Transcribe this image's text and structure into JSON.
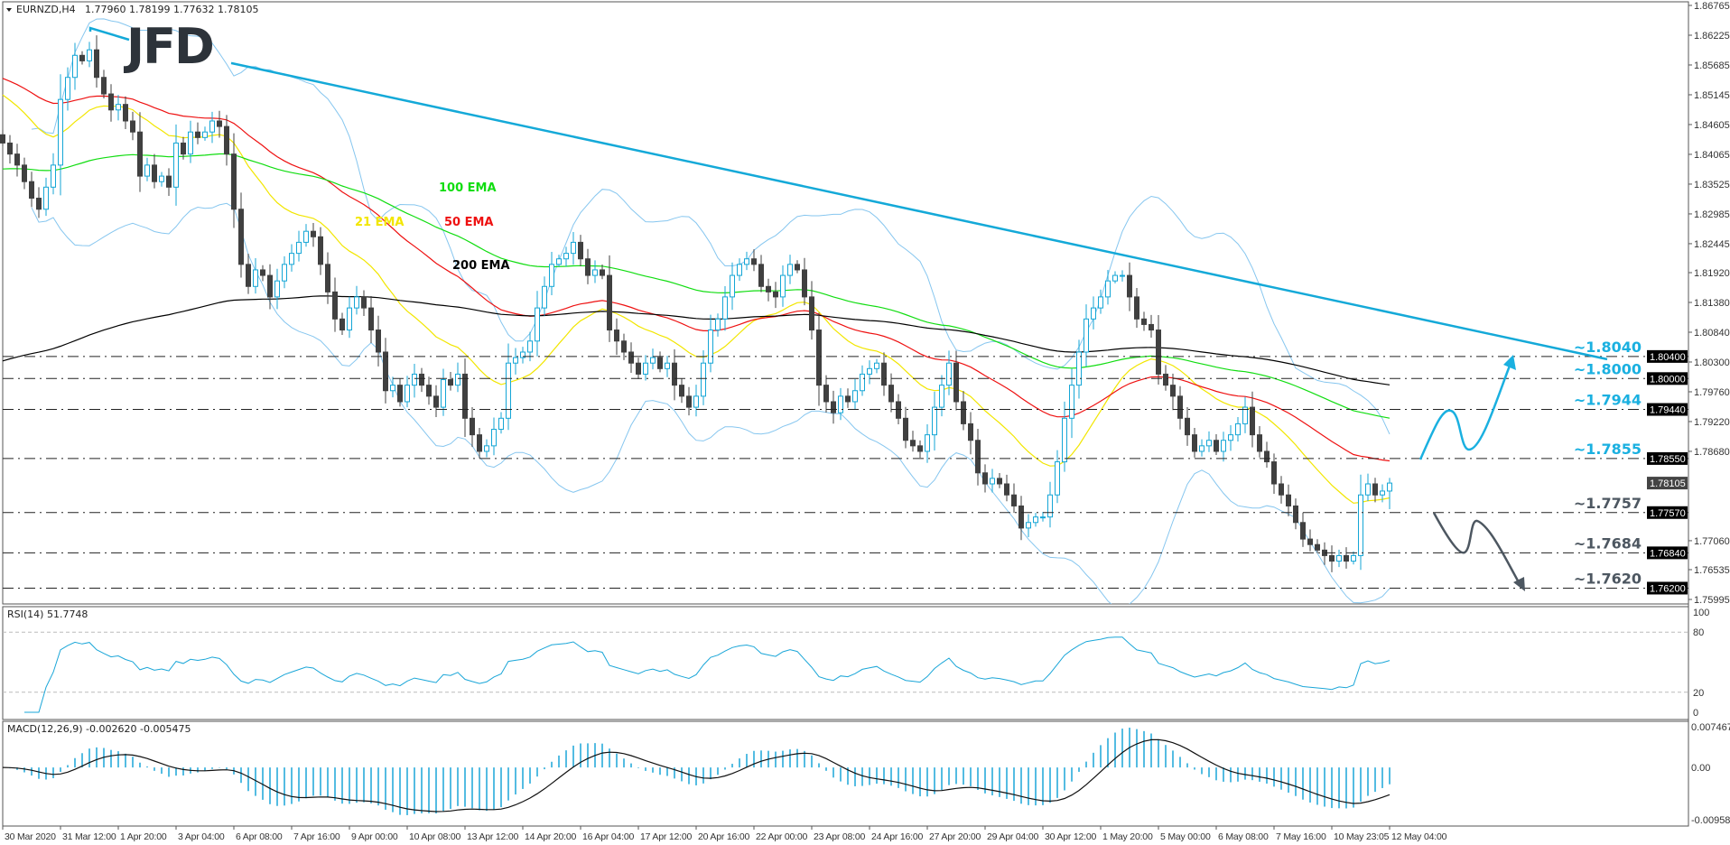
{
  "header": {
    "symbol": "EURNZD,H4",
    "ohlc": "1.77960 1.78199 1.77632 1.78105"
  },
  "logo": "JFD",
  "colors": {
    "bull": "#14a6d6",
    "bear": "#404040",
    "trendline": "#14a9d8",
    "bollinger": "#86c6ef",
    "level_line": "#222222",
    "level_up": "#1ab0e0",
    "level_down": "#4d5761",
    "rsi": "#1aa6d8",
    "macd_hist": "#1aa6d8",
    "macd_signal": "#111111",
    "axis_box": "#000000",
    "current_box": "#444444"
  },
  "chart_data": [
    {
      "type": "candlestick",
      "title": "EURNZD,H4",
      "ylim": [
        1.75995,
        1.86765
      ],
      "price_ticks": [
        "1.86765",
        "1.86225",
        "1.85685",
        "1.85145",
        "1.84605",
        "1.84065",
        "1.83525",
        "1.82985",
        "1.82445",
        "1.81920",
        "1.81380",
        "1.80840",
        "1.80300",
        "1.79760",
        "1.79220",
        "1.78680",
        "1.77060",
        "1.76535",
        "1.75995"
      ],
      "x_tick_labels": [
        "30 Mar 2020",
        "31 Mar 12:00",
        "1 Apr 20:00",
        "3 Apr 04:00",
        "6 Apr 08:00",
        "7 Apr 16:00",
        "9 Apr 00:00",
        "10 Apr 08:00",
        "13 Apr 12:00",
        "14 Apr 20:00",
        "16 Apr 04:00",
        "17 Apr 12:00",
        "20 Apr 16:00",
        "22 Apr 00:00",
        "23 Apr 08:00",
        "24 Apr 16:00",
        "27 Apr 20:00",
        "29 Apr 04:00",
        "30 Apr 12:00",
        "1 May 20:00",
        "5 May 00:00",
        "6 May 08:00",
        "7 May 16:00",
        "10 May 23:05",
        "12 May 04:00"
      ],
      "close": [
        1.8427,
        1.8407,
        1.8387,
        1.8357,
        1.8327,
        1.8307,
        1.8347,
        1.8387,
        1.8506,
        1.8546,
        1.8586,
        1.8576,
        1.8596,
        1.8546,
        1.8516,
        1.8487,
        1.8497,
        1.8467,
        1.8447,
        1.8367,
        1.8387,
        1.8357,
        1.8367,
        1.8347,
        1.8427,
        1.8407,
        1.8447,
        1.8437,
        1.8447,
        1.8467,
        1.8457,
        1.8407,
        1.8307,
        1.8207,
        1.8167,
        1.8197,
        1.8187,
        1.8148,
        1.8177,
        1.8207,
        1.8227,
        1.8247,
        1.8267,
        1.8257,
        1.8207,
        1.8157,
        1.8108,
        1.8088,
        1.8128,
        1.8148,
        1.8128,
        1.8088,
        1.8048,
        1.7978,
        1.7988,
        1.7958,
        1.7988,
        1.8008,
        1.7988,
        1.7968,
        1.7948,
        1.7998,
        1.7988,
        1.8008,
        1.7928,
        1.7898,
        1.7868,
        1.7878,
        1.7908,
        1.7928,
        1.8028,
        1.8038,
        1.8048,
        1.8068,
        1.8128,
        1.8167,
        1.8207,
        1.8217,
        1.8227,
        1.8247,
        1.8217,
        1.8187,
        1.8197,
        1.8187,
        1.8088,
        1.8068,
        1.8048,
        1.8028,
        1.8008,
        1.8028,
        1.8038,
        1.8018,
        1.8028,
        1.7988,
        1.7968,
        1.7948,
        1.7968,
        1.8028,
        1.8088,
        1.8108,
        1.8148,
        1.8187,
        1.8207,
        1.8217,
        1.8207,
        1.8167,
        1.8157,
        1.8148,
        1.8187,
        1.8207,
        1.8197,
        1.8148,
        1.8088,
        1.7988,
        1.7958,
        1.7938,
        1.7968,
        1.7958,
        1.7978,
        1.8008,
        1.8018,
        1.8028,
        1.7988,
        1.7958,
        1.7928,
        1.7888,
        1.7878,
        1.7868,
        1.7898,
        1.7948,
        1.7988,
        1.8028,
        1.7958,
        1.7918,
        1.7888,
        1.7829,
        1.7809,
        1.7819,
        1.7809,
        1.7789,
        1.7769,
        1.7729,
        1.7739,
        1.7749,
        1.7749,
        1.7789,
        1.7849,
        1.7928,
        1.7988,
        1.8048,
        1.8108,
        1.8128,
        1.8148,
        1.8177,
        1.8187,
        1.8187,
        1.8148,
        1.8108,
        1.8098,
        1.8088,
        1.8008,
        1.7988,
        1.7968,
        1.7928,
        1.7898,
        1.7868,
        1.7878,
        1.7888,
        1.7868,
        1.7888,
        1.7898,
        1.7918,
        1.7948,
        1.7898,
        1.7868,
        1.7849,
        1.7809,
        1.7789,
        1.7769,
        1.7739,
        1.7709,
        1.7699,
        1.7689,
        1.7679,
        1.7669,
        1.7679,
        1.7669,
        1.7679,
        1.7789,
        1.7809,
        1.7789,
        1.7796,
        1.78105
      ],
      "last_bar": {
        "open": 1.7796,
        "high": 1.78199,
        "low": 1.77632,
        "close": 1.78105
      },
      "current_price": {
        "value": 1.78105,
        "label": "1.78105"
      },
      "ema": [
        {
          "period": 21,
          "label": "21 EMA",
          "color": "#f2e600",
          "start": 1.8523
        },
        {
          "period": 50,
          "label": "50 EMA",
          "color": "#ee1111",
          "start": 1.8549
        },
        {
          "period": 100,
          "label": "100 EMA",
          "color": "#11dd11",
          "start": 1.8379
        },
        {
          "period": 200,
          "label": "200 EMA",
          "color": "#000000",
          "start": 1.8028
        }
      ],
      "bollinger": {
        "period": 20,
        "deviations": 2
      },
      "trendline": {
        "from": {
          "time": "6 Apr 08:00",
          "price": 1.8572
        },
        "to": {
          "price": 1.8035
        }
      },
      "levels": [
        {
          "value": 1.804,
          "label": "~1.8040",
          "axis_label": "1.80400",
          "side": "up"
        },
        {
          "value": 1.8,
          "label": "~1.8000",
          "axis_label": "1.80000",
          "side": "up"
        },
        {
          "value": 1.7944,
          "label": "~1.7944",
          "axis_label": "1.79440",
          "side": "up"
        },
        {
          "value": 1.7855,
          "label": "~1.7855",
          "axis_label": "1.78550",
          "side": "up"
        },
        {
          "value": 1.7757,
          "label": "~1.7757",
          "axis_label": "1.77570",
          "side": "down"
        },
        {
          "value": 1.7684,
          "label": "~1.7684",
          "axis_label": "1.76840",
          "side": "down"
        },
        {
          "value": 1.762,
          "label": "~1.7620",
          "axis_label": "1.76200",
          "side": "down"
        }
      ]
    },
    {
      "type": "line",
      "title": "RSI(14) 51.7748",
      "period": 14,
      "ylim": [
        0,
        100
      ],
      "ticks": [
        {
          "value": 100,
          "label": "100"
        },
        {
          "value": 80,
          "label": "80"
        },
        {
          "value": 20,
          "label": "20"
        },
        {
          "value": 0,
          "label": "0"
        }
      ],
      "levels": [
        80,
        20
      ]
    },
    {
      "type": "bar",
      "title": "MACD(12,26,9) -0.002620 -0.005475",
      "params": [
        12,
        26,
        9
      ],
      "ylim": [
        -0.00958,
        0.007467
      ],
      "ticks": [
        {
          "value": 0.007467,
          "label": "0.007467"
        },
        {
          "value": 0,
          "label": "0.00"
        },
        {
          "value": -0.00958,
          "label": "-0.00958"
        }
      ]
    }
  ]
}
